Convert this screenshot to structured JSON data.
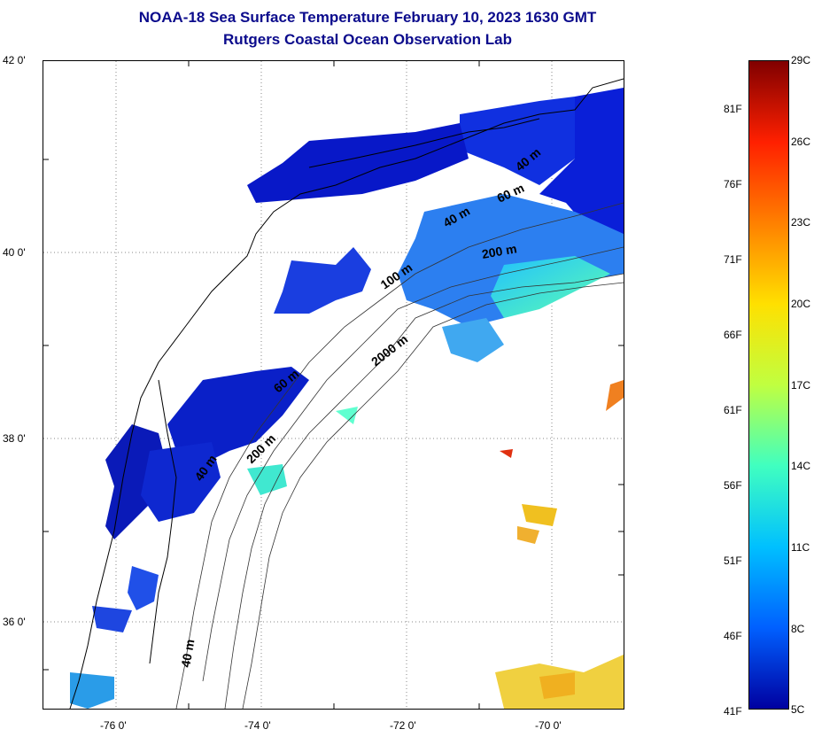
{
  "title": {
    "line1": "NOAA-18 Sea Surface Temperature February 10, 2023 1630 GMT",
    "line2": "Rutgers Coastal Ocean Observation Lab"
  },
  "map": {
    "lat_labels": [
      "42 0'",
      "40 0'",
      "38 0'",
      "36 0'"
    ],
    "lon_labels": [
      "-76 0'",
      "-74 0'",
      "-72 0'",
      "-70 0'"
    ],
    "isobath_labels": [
      {
        "text": "40 m"
      },
      {
        "text": "60 m"
      },
      {
        "text": "40 m"
      },
      {
        "text": "200 m"
      },
      {
        "text": "100 m"
      },
      {
        "text": "2000 m"
      },
      {
        "text": "60 m"
      },
      {
        "text": "200 m"
      },
      {
        "text": "40 m"
      },
      {
        "text": "40 m"
      }
    ]
  },
  "colorbar": {
    "fahrenheit_labels": [
      "81F",
      "76F",
      "71F",
      "66F",
      "61F",
      "56F",
      "51F",
      "46F",
      "41F"
    ],
    "celsius_labels": [
      "29C",
      "26C",
      "23C",
      "20C",
      "17C",
      "14C",
      "11C",
      "8C",
      "5C"
    ],
    "colors": [
      "#800000",
      "#ff2000",
      "#ff8000",
      "#ffe000",
      "#c0ff40",
      "#40ffc0",
      "#00c0ff",
      "#0060ff",
      "#0000a0"
    ]
  }
}
